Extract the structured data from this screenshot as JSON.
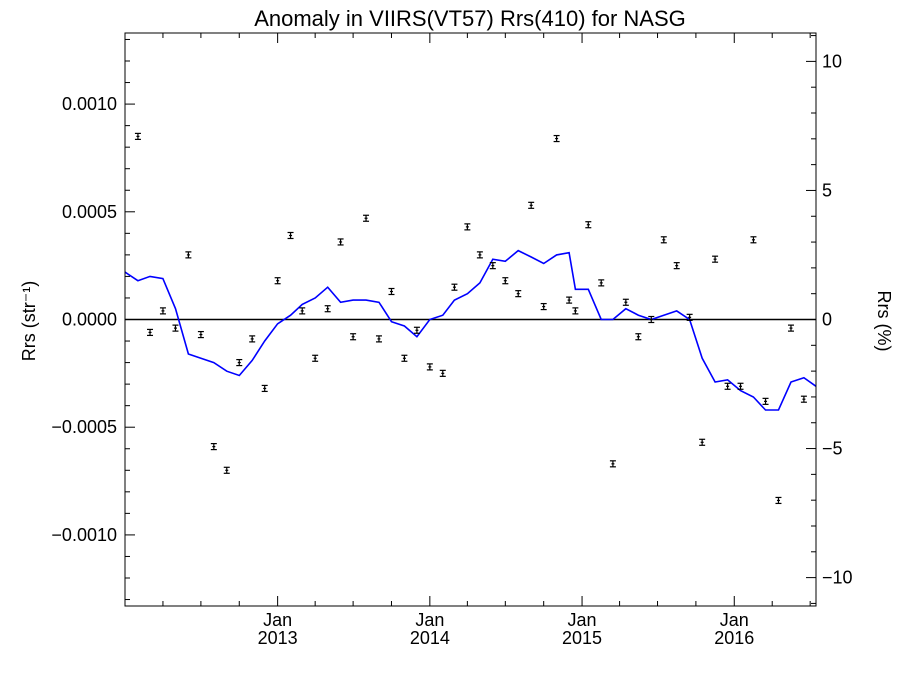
{
  "chart_data": {
    "type": "scatter",
    "title": "Anomaly in VIIRS(VT57) Rrs(410) for NASG",
    "ylabel_left": "Rrs (str⁻¹)",
    "ylabel_right": "Rrs (%)",
    "x_tick_labels": [
      {
        "month": "Jan",
        "year": "2013"
      },
      {
        "month": "Jan",
        "year": "2014"
      },
      {
        "month": "Jan",
        "year": "2015"
      },
      {
        "month": "Jan",
        "year": "2016"
      }
    ],
    "xlim": [
      "2012-01-01",
      "2016-07-15"
    ],
    "ylim": [
      -0.00133,
      0.00133
    ],
    "ylim_right": [
      -11.1,
      11.1
    ],
    "y_ticks": [
      "0.0010",
      "0.0005",
      "0.0000",
      "−0.0005",
      "−0.0010"
    ],
    "y_tick_values": [
      0.001,
      0.0005,
      0,
      -0.0005,
      -0.001
    ],
    "y_right_ticks": [
      "10",
      "5",
      "0",
      "−5",
      "−10"
    ],
    "y_right_tick_values": [
      10,
      5,
      0,
      -5,
      -10
    ],
    "zero_line": true,
    "series": [
      {
        "kind": "points_with_error_bars",
        "color": "#000000",
        "points": [
          {
            "date": "2012-02-01",
            "value": 0.00085
          },
          {
            "date": "2012-03-01",
            "value": -6e-05
          },
          {
            "date": "2012-04-01",
            "value": 4e-05
          },
          {
            "date": "2012-05-01",
            "value": -4e-05
          },
          {
            "date": "2012-06-01",
            "value": 0.0003
          },
          {
            "date": "2012-07-01",
            "value": -7e-05
          },
          {
            "date": "2012-08-01",
            "value": -0.00059
          },
          {
            "date": "2012-09-01",
            "value": -0.0007
          },
          {
            "date": "2012-10-01",
            "value": -0.0002
          },
          {
            "date": "2012-11-01",
            "value": -9e-05
          },
          {
            "date": "2012-12-01",
            "value": -0.00032
          },
          {
            "date": "2013-01-01",
            "value": 0.00018
          },
          {
            "date": "2013-02-01",
            "value": 0.00039
          },
          {
            "date": "2013-03-01",
            "value": 4e-05
          },
          {
            "date": "2013-04-01",
            "value": -0.00018
          },
          {
            "date": "2013-05-01",
            "value": 5e-05
          },
          {
            "date": "2013-06-01",
            "value": 0.00036
          },
          {
            "date": "2013-07-01",
            "value": -8e-05
          },
          {
            "date": "2013-08-01",
            "value": 0.00047
          },
          {
            "date": "2013-09-01",
            "value": -9e-05
          },
          {
            "date": "2013-10-01",
            "value": 0.00013
          },
          {
            "date": "2013-11-01",
            "value": -0.00018
          },
          {
            "date": "2013-12-01",
            "value": -5e-05
          },
          {
            "date": "2014-01-01",
            "value": -0.00022
          },
          {
            "date": "2014-02-01",
            "value": -0.00025
          },
          {
            "date": "2014-03-01",
            "value": 0.00015
          },
          {
            "date": "2014-04-01",
            "value": 0.00043
          },
          {
            "date": "2014-05-01",
            "value": 0.0003
          },
          {
            "date": "2014-06-01",
            "value": 0.00025
          },
          {
            "date": "2014-07-01",
            "value": 0.00018
          },
          {
            "date": "2014-08-01",
            "value": 0.00012
          },
          {
            "date": "2014-09-01",
            "value": 0.00053
          },
          {
            "date": "2014-10-01",
            "value": 6e-05
          },
          {
            "date": "2014-11-01",
            "value": 0.00084
          },
          {
            "date": "2014-12-01",
            "value": 9e-05
          },
          {
            "date": "2014-12-16",
            "value": 4e-05
          },
          {
            "date": "2015-01-16",
            "value": 0.00044
          },
          {
            "date": "2015-02-16",
            "value": 0.00017
          },
          {
            "date": "2015-03-16",
            "value": -0.00067
          },
          {
            "date": "2015-04-16",
            "value": 8e-05
          },
          {
            "date": "2015-05-16",
            "value": -8e-05
          },
          {
            "date": "2015-06-16",
            "value": 0.0
          },
          {
            "date": "2015-07-16",
            "value": 0.00037
          },
          {
            "date": "2015-08-16",
            "value": 0.00025
          },
          {
            "date": "2015-09-16",
            "value": 1e-05
          },
          {
            "date": "2015-10-16",
            "value": -0.00057
          },
          {
            "date": "2015-11-16",
            "value": 0.00028
          },
          {
            "date": "2015-12-16",
            "value": -0.00031
          },
          {
            "date": "2016-01-16",
            "value": -0.00031
          },
          {
            "date": "2016-02-16",
            "value": 0.00037
          },
          {
            "date": "2016-03-16",
            "value": -0.00038
          },
          {
            "date": "2016-04-16",
            "value": -0.00084
          },
          {
            "date": "2016-05-16",
            "value": -4e-05
          },
          {
            "date": "2016-06-16",
            "value": -0.00037
          }
        ]
      },
      {
        "kind": "line",
        "color": "#0000ff",
        "points": [
          {
            "date": "2012-01-01",
            "value": 0.00022
          },
          {
            "date": "2012-02-01",
            "value": 0.00018
          },
          {
            "date": "2012-03-01",
            "value": 0.0002
          },
          {
            "date": "2012-04-01",
            "value": 0.00019
          },
          {
            "date": "2012-05-01",
            "value": 5e-05
          },
          {
            "date": "2012-06-01",
            "value": -0.00016
          },
          {
            "date": "2012-07-01",
            "value": -0.00018
          },
          {
            "date": "2012-08-01",
            "value": -0.0002
          },
          {
            "date": "2012-09-01",
            "value": -0.00024
          },
          {
            "date": "2012-10-01",
            "value": -0.00026
          },
          {
            "date": "2012-11-01",
            "value": -0.00019
          },
          {
            "date": "2012-12-01",
            "value": -0.0001
          },
          {
            "date": "2013-01-01",
            "value": -2e-05
          },
          {
            "date": "2013-02-01",
            "value": 2e-05
          },
          {
            "date": "2013-03-01",
            "value": 7e-05
          },
          {
            "date": "2013-04-01",
            "value": 0.0001
          },
          {
            "date": "2013-05-01",
            "value": 0.00015
          },
          {
            "date": "2013-06-01",
            "value": 8e-05
          },
          {
            "date": "2013-07-01",
            "value": 9e-05
          },
          {
            "date": "2013-08-01",
            "value": 9e-05
          },
          {
            "date": "2013-09-01",
            "value": 8e-05
          },
          {
            "date": "2013-10-01",
            "value": -1e-05
          },
          {
            "date": "2013-11-01",
            "value": -3e-05
          },
          {
            "date": "2013-12-01",
            "value": -8e-05
          },
          {
            "date": "2014-01-01",
            "value": 0.0
          },
          {
            "date": "2014-02-01",
            "value": 2e-05
          },
          {
            "date": "2014-03-01",
            "value": 9e-05
          },
          {
            "date": "2014-04-01",
            "value": 0.00012
          },
          {
            "date": "2014-05-01",
            "value": 0.00017
          },
          {
            "date": "2014-06-01",
            "value": 0.00028
          },
          {
            "date": "2014-07-01",
            "value": 0.00027
          },
          {
            "date": "2014-08-01",
            "value": 0.00032
          },
          {
            "date": "2014-09-01",
            "value": 0.00029
          },
          {
            "date": "2014-10-01",
            "value": 0.00026
          },
          {
            "date": "2014-11-01",
            "value": 0.0003
          },
          {
            "date": "2014-12-01",
            "value": 0.00031
          },
          {
            "date": "2014-12-16",
            "value": 0.00014
          },
          {
            "date": "2015-01-16",
            "value": 0.00014
          },
          {
            "date": "2015-02-16",
            "value": 0.0
          },
          {
            "date": "2015-03-16",
            "value": 0.0
          },
          {
            "date": "2015-04-16",
            "value": 5e-05
          },
          {
            "date": "2015-05-16",
            "value": 2e-05
          },
          {
            "date": "2015-06-16",
            "value": 0.0
          },
          {
            "date": "2015-07-16",
            "value": 2e-05
          },
          {
            "date": "2015-08-16",
            "value": 4e-05
          },
          {
            "date": "2015-09-16",
            "value": 0.0
          },
          {
            "date": "2015-10-16",
            "value": -0.00018
          },
          {
            "date": "2015-11-16",
            "value": -0.00029
          },
          {
            "date": "2015-12-16",
            "value": -0.00028
          },
          {
            "date": "2016-01-16",
            "value": -0.00033
          },
          {
            "date": "2016-02-16",
            "value": -0.00036
          },
          {
            "date": "2016-03-16",
            "value": -0.00042
          },
          {
            "date": "2016-04-16",
            "value": -0.00042
          },
          {
            "date": "2016-05-16",
            "value": -0.00029
          },
          {
            "date": "2016-06-16",
            "value": -0.00027
          },
          {
            "date": "2016-07-15",
            "value": -0.00031
          }
        ]
      }
    ]
  }
}
